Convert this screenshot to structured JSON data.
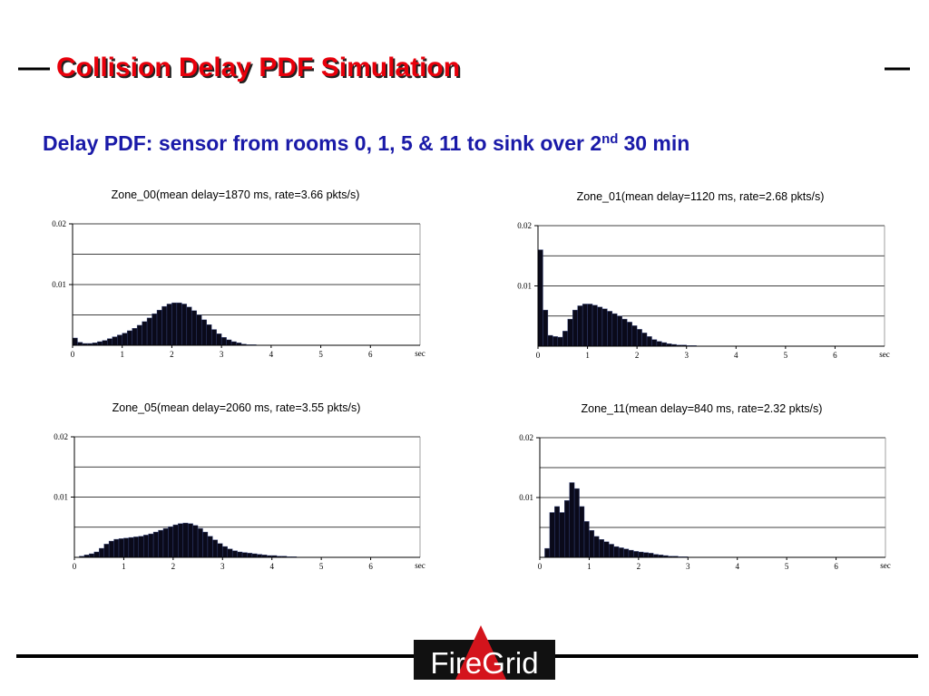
{
  "header": {
    "title": "Collision Delay PDF Simulation"
  },
  "subtitle": {
    "text": "Delay PDF: sensor from rooms 0, 1, 5 & 11 to sink over 2",
    "superscript": "nd",
    "tail": "30 min"
  },
  "logo": "FireGrid",
  "chart_data": [
    {
      "type": "histogram",
      "title": "Zone_00(mean delay=1870 ms, rate=3.66 pkts/s)",
      "x_label": "sec",
      "color": "#0a0a1a",
      "bins": [
        0,
        0.1,
        0.2,
        0.3,
        0.4,
        0.5,
        0.6,
        0.7,
        0.8,
        0.9,
        1,
        1.1,
        1.2,
        1.3,
        1.4,
        1.5,
        1.6,
        1.7,
        1.8,
        1.9,
        2,
        2.1,
        2.2,
        2.3,
        2.4,
        2.5,
        2.6,
        2.7,
        2.8,
        2.9,
        3,
        3.1,
        3.2,
        3.3,
        3.4,
        3.5,
        3.6,
        3.7,
        3.8,
        3.9,
        4,
        4.1,
        4.2,
        4.3,
        4.4,
        4.5,
        4.6,
        4.7,
        4.8,
        4.9,
        5
      ],
      "values": [
        0.0012,
        0.0005,
        0.0003,
        0.0003,
        0.0004,
        0.0006,
        0.0008,
        0.0011,
        0.0014,
        0.0017,
        0.002,
        0.0024,
        0.0028,
        0.0033,
        0.0039,
        0.0045,
        0.0052,
        0.0058,
        0.0064,
        0.0068,
        0.007,
        0.007,
        0.0068,
        0.0063,
        0.0057,
        0.005,
        0.0042,
        0.0034,
        0.0026,
        0.0019,
        0.0013,
        0.0009,
        0.0006,
        0.0004,
        0.0002,
        0.0001,
        0.0001,
        0,
        0,
        0,
        0,
        0,
        0,
        0,
        0,
        0,
        0,
        0,
        0,
        0
      ],
      "xlim": [
        0,
        7
      ],
      "xticks": [
        0,
        1,
        2,
        3,
        4,
        5,
        6
      ],
      "ylim": [
        0,
        0.02
      ],
      "yticks": [
        0.01,
        0.02
      ],
      "ygrid": [
        0.005,
        0.01,
        0.015,
        0.02
      ]
    },
    {
      "type": "histogram",
      "title": "Zone_01(mean delay=1120 ms, rate=2.68 pkts/s)",
      "x_label": "sec",
      "color": "#0a0a1a",
      "bins": [
        0,
        0.1,
        0.2,
        0.3,
        0.4,
        0.5,
        0.6,
        0.7,
        0.8,
        0.9,
        1,
        1.1,
        1.2,
        1.3,
        1.4,
        1.5,
        1.6,
        1.7,
        1.8,
        1.9,
        2,
        2.1,
        2.2,
        2.3,
        2.4,
        2.5,
        2.6,
        2.7,
        2.8,
        2.9,
        3,
        3.1,
        3.2,
        3.3,
        3.4,
        3.5,
        3.6,
        3.7,
        3.8,
        3.9,
        4,
        4.1,
        4.2,
        4.3,
        4.4,
        4.5,
        4.6,
        4.7,
        4.8,
        4.9,
        5
      ],
      "values": [
        0.016,
        0.006,
        0.0018,
        0.0016,
        0.0015,
        0.0025,
        0.0045,
        0.006,
        0.0067,
        0.007,
        0.007,
        0.0068,
        0.0065,
        0.0062,
        0.0058,
        0.0054,
        0.005,
        0.0045,
        0.004,
        0.0034,
        0.0028,
        0.0022,
        0.0016,
        0.0011,
        0.0008,
        0.0006,
        0.0004,
        0.0003,
        0.0002,
        0.0002,
        0.0001,
        0.0001,
        0,
        0,
        0,
        0,
        0,
        0,
        0,
        0,
        0,
        0,
        0,
        0,
        0,
        0,
        0,
        0,
        0,
        0
      ],
      "xlim": [
        0,
        7
      ],
      "xticks": [
        0,
        1,
        2,
        3,
        4,
        5,
        6
      ],
      "ylim": [
        0,
        0.02
      ],
      "yticks": [
        0.01,
        0.02
      ],
      "ygrid": [
        0.005,
        0.01,
        0.015,
        0.02
      ]
    },
    {
      "type": "histogram",
      "title": "Zone_05(mean delay=2060 ms, rate=3.55 pkts/s)",
      "x_label": "sec",
      "color": "#0a0a1a",
      "bins": [
        0,
        0.1,
        0.2,
        0.3,
        0.4,
        0.5,
        0.6,
        0.7,
        0.8,
        0.9,
        1,
        1.1,
        1.2,
        1.3,
        1.4,
        1.5,
        1.6,
        1.7,
        1.8,
        1.9,
        2,
        2.1,
        2.2,
        2.3,
        2.4,
        2.5,
        2.6,
        2.7,
        2.8,
        2.9,
        3,
        3.1,
        3.2,
        3.3,
        3.4,
        3.5,
        3.6,
        3.7,
        3.8,
        3.9,
        4,
        4.1,
        4.2,
        4.3,
        4.4,
        4.5,
        4.6,
        4.7,
        4.8,
        4.9,
        5
      ],
      "values": [
        0,
        0.0002,
        0.0004,
        0.0006,
        0.0009,
        0.0015,
        0.0022,
        0.0027,
        0.003,
        0.0031,
        0.0032,
        0.0033,
        0.0034,
        0.0035,
        0.0037,
        0.0039,
        0.0042,
        0.0045,
        0.0048,
        0.0051,
        0.0054,
        0.0056,
        0.0057,
        0.0056,
        0.0053,
        0.0048,
        0.0042,
        0.0035,
        0.0029,
        0.0023,
        0.0018,
        0.0014,
        0.0011,
        0.0009,
        0.0008,
        0.0007,
        0.0006,
        0.0005,
        0.0004,
        0.0003,
        0.0003,
        0.0002,
        0.0002,
        0.0001,
        0.0001,
        0,
        0,
        0,
        0,
        0
      ],
      "xlim": [
        0,
        7
      ],
      "xticks": [
        0,
        1,
        2,
        3,
        4,
        5,
        6
      ],
      "ylim": [
        0,
        0.02
      ],
      "yticks": [
        0.01,
        0.02
      ],
      "ygrid": [
        0.005,
        0.01,
        0.015,
        0.02
      ]
    },
    {
      "type": "histogram",
      "title": "Zone_11(mean delay=840 ms, rate=2.32 pkts/s)",
      "x_label": "sec",
      "color": "#0a0a1a",
      "bins": [
        0,
        0.1,
        0.2,
        0.3,
        0.4,
        0.5,
        0.6,
        0.7,
        0.8,
        0.9,
        1,
        1.1,
        1.2,
        1.3,
        1.4,
        1.5,
        1.6,
        1.7,
        1.8,
        1.9,
        2,
        2.1,
        2.2,
        2.3,
        2.4,
        2.5,
        2.6,
        2.7,
        2.8,
        2.9,
        3,
        3.1,
        3.2,
        3.3,
        3.4,
        3.5,
        3.6,
        3.7,
        3.8,
        3.9,
        4,
        4.1,
        4.2,
        4.3,
        4.4,
        4.5,
        4.6,
        4.7,
        4.8,
        4.9,
        5
      ],
      "values": [
        0,
        0.0015,
        0.0075,
        0.0085,
        0.0075,
        0.0095,
        0.0125,
        0.0115,
        0.0085,
        0.006,
        0.0045,
        0.0035,
        0.003,
        0.0026,
        0.0022,
        0.0018,
        0.0016,
        0.0014,
        0.0012,
        0.001,
        0.0009,
        0.0008,
        0.0007,
        0.0005,
        0.0004,
        0.0003,
        0.0002,
        0.0002,
        0.0001,
        0.0001,
        0,
        0,
        0,
        0,
        0,
        0,
        0,
        0,
        0,
        0,
        0,
        0,
        0,
        0,
        0,
        0,
        0,
        0,
        0,
        0
      ],
      "xlim": [
        0,
        7
      ],
      "xticks": [
        0,
        1,
        2,
        3,
        4,
        5,
        6
      ],
      "ylim": [
        0,
        0.02
      ],
      "yticks": [
        0.01,
        0.02
      ],
      "ygrid": [
        0.005,
        0.01,
        0.015,
        0.02
      ]
    }
  ]
}
